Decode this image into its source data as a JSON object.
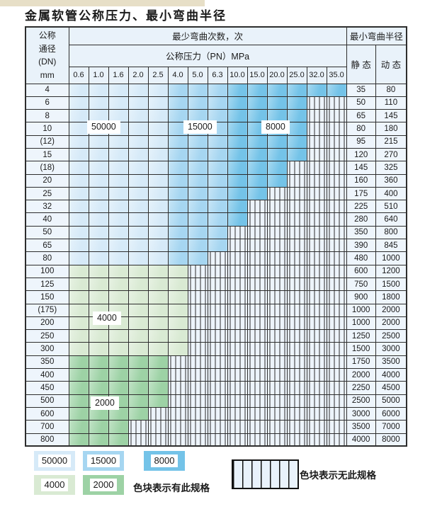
{
  "title": "金属软管公称压力、最小弯曲半径",
  "table": {
    "header": {
      "dn_lines": [
        "公称",
        "通径",
        "(DN)",
        "mm"
      ],
      "cycles": "最少弯曲次数，次",
      "pressure": "公称压力（PN）MPa",
      "pressures": [
        "0.6",
        "1.0",
        "1.6",
        "2.0",
        "2.5",
        "4.0",
        "5.0",
        "6.3",
        "10.0",
        "15.0",
        "20.0",
        "25.0",
        "32.0",
        "35.0"
      ],
      "radius": "最小弯曲半径",
      "static_label": "静 态",
      "dynamic_label": "动 态"
    },
    "rows": [
      {
        "dn": "4",
        "colored": 14,
        "family": "blue",
        "static": "35",
        "dynamic": "80"
      },
      {
        "dn": "6",
        "colored": 12,
        "family": "blue",
        "static": "50",
        "dynamic": "110"
      },
      {
        "dn": "8",
        "colored": 12,
        "family": "blue",
        "static": "65",
        "dynamic": "145"
      },
      {
        "dn": "10",
        "colored": 12,
        "family": "blue",
        "static": "80",
        "dynamic": "180"
      },
      {
        "dn": "(12)",
        "colored": 12,
        "family": "blue",
        "static": "95",
        "dynamic": "215"
      },
      {
        "dn": "15",
        "colored": 12,
        "family": "blue",
        "static": "120",
        "dynamic": "270"
      },
      {
        "dn": "(18)",
        "colored": 11,
        "family": "blue",
        "static": "145",
        "dynamic": "325"
      },
      {
        "dn": "20",
        "colored": 11,
        "family": "blue",
        "static": "160",
        "dynamic": "360"
      },
      {
        "dn": "25",
        "colored": 10,
        "family": "blue",
        "static": "175",
        "dynamic": "400"
      },
      {
        "dn": "32",
        "colored": 9,
        "family": "blue",
        "static": "225",
        "dynamic": "510"
      },
      {
        "dn": "40",
        "colored": 9,
        "family": "blue",
        "static": "280",
        "dynamic": "640"
      },
      {
        "dn": "50",
        "colored": 8,
        "family": "blue",
        "static": "350",
        "dynamic": "800"
      },
      {
        "dn": "65",
        "colored": 8,
        "family": "blue",
        "static": "390",
        "dynamic": "845"
      },
      {
        "dn": "80",
        "colored": 7,
        "family": "blue",
        "static": "480",
        "dynamic": "1000"
      },
      {
        "dn": "100",
        "colored": 6,
        "family": "g4000",
        "static": "600",
        "dynamic": "1200"
      },
      {
        "dn": "125",
        "colored": 6,
        "family": "g4000",
        "static": "750",
        "dynamic": "1500"
      },
      {
        "dn": "150",
        "colored": 6,
        "family": "g4000",
        "static": "900",
        "dynamic": "1800"
      },
      {
        "dn": "(175)",
        "colored": 6,
        "family": "g4000",
        "static": "1000",
        "dynamic": "2000"
      },
      {
        "dn": "200",
        "colored": 6,
        "family": "g4000",
        "static": "1000",
        "dynamic": "2000"
      },
      {
        "dn": "250",
        "colored": 6,
        "family": "g4000",
        "static": "1250",
        "dynamic": "2500"
      },
      {
        "dn": "300",
        "colored": 6,
        "family": "g4000",
        "static": "1500",
        "dynamic": "3000"
      },
      {
        "dn": "350",
        "colored": 5,
        "family": "g2000",
        "static": "1750",
        "dynamic": "3500"
      },
      {
        "dn": "400",
        "colored": 5,
        "family": "g2000",
        "static": "2000",
        "dynamic": "4000"
      },
      {
        "dn": "450",
        "colored": 5,
        "family": "g2000",
        "static": "2250",
        "dynamic": "4500"
      },
      {
        "dn": "500",
        "colored": 5,
        "family": "g2000",
        "static": "2500",
        "dynamic": "5000"
      },
      {
        "dn": "600",
        "colored": 4,
        "family": "g2000",
        "static": "3000",
        "dynamic": "6000"
      },
      {
        "dn": "700",
        "colored": 3,
        "family": "g2000",
        "static": "3500",
        "dynamic": "7000"
      },
      {
        "dn": "800",
        "colored": 3,
        "family": "g2000",
        "static": "4000",
        "dynamic": "8000"
      }
    ],
    "zone_columns": {
      "c50000_last_col": 5,
      "c15000_last_col": 8,
      "c8000_last_col": 14
    }
  },
  "overlays": {
    "b50000": "50000",
    "b15000": "15000",
    "b8000": "8000",
    "g4000": "4000",
    "g2000": "2000"
  },
  "legend": {
    "items": [
      {
        "label": "50000",
        "family": "cA"
      },
      {
        "label": "15000",
        "family": "cB"
      },
      {
        "label": "8000",
        "family": "cC"
      },
      {
        "label": "4000",
        "family": "gA"
      },
      {
        "label": "2000",
        "family": "gB"
      }
    ],
    "has_spec": "色块表示有此规格",
    "no_spec": "色块表示无此规格"
  },
  "colors": {
    "c50000": "#d6eaf8",
    "c15000": "#a6d6f1",
    "c8000": "#74c3e8",
    "c4000": "#d9ead3",
    "c2000": "#9dd2a5",
    "hatch_bg": "#edf4fb",
    "header_bg": "#e9f2fa",
    "grid": "#2d2d2d"
  }
}
